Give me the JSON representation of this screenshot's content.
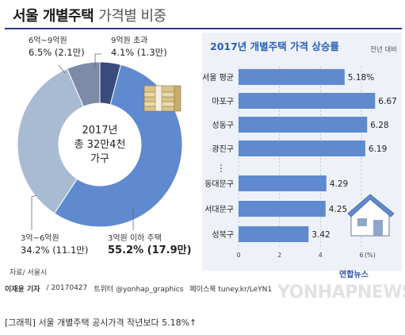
{
  "header": {
    "title_main": "서울 개별주택",
    "title_sub": "가격별 비중"
  },
  "colors": {
    "dark_navy": "#3b4a7d",
    "slate": "#7d8aa8",
    "light_blue_gray": "#a9bbd3",
    "blue": "#5f8ad0",
    "bar_blue": "#5f8ad0",
    "right_bg": "#eef2f8",
    "title_rule": "#2d3a8c"
  },
  "icons": [
    "money-stack-icon",
    "house-icon"
  ],
  "chart_data": [
    {
      "type": "pie",
      "center_label": [
        "2017년",
        "총 32만4천",
        "가구"
      ],
      "slices": [
        {
          "label": "3억원 이하 주택",
          "value_text": "55.2% (17.9만)",
          "value": 55.2,
          "color": "#5f8ad0"
        },
        {
          "label": "3억~6억원",
          "value_text": "34.2% (11.1만)",
          "value": 34.2,
          "color": "#a9bbd3"
        },
        {
          "label": "6억~9억원",
          "value_text": "6.5% (2.1만)",
          "value": 6.5,
          "color": "#7d8aa8"
        },
        {
          "label": "9억원 초과",
          "value_text": "4.1% (1.3만)",
          "value": 4.1,
          "color": "#3b4a7d"
        }
      ]
    },
    {
      "type": "bar",
      "title": "2017년 개별주택 가격 상승률",
      "subtitle": "전년 대비",
      "orientation": "horizontal",
      "categories": [
        "서울 평균",
        "마포구",
        "성동구",
        "광진구",
        "동대문구",
        "서대문구",
        "성북구"
      ],
      "values": [
        5.18,
        6.67,
        6.28,
        6.19,
        4.29,
        4.25,
        3.42
      ],
      "value_labels": [
        "5.18%",
        "6.67",
        "6.28",
        "6.19",
        "4.29",
        "4.25",
        "3.42"
      ],
      "ellipsis_after": 3,
      "ellipsis_text": "⋮",
      "x_ticks": [
        "0",
        "2",
        "4",
        "6"
      ],
      "x_unit": "(%)",
      "xlim": [
        0,
        6.9
      ]
    }
  ],
  "footer": {
    "source": "자료/ 서울시",
    "logo": "연합뉴스",
    "watermark": "YONHAPNEWS",
    "reporter": "이재윤 기자",
    "date": "/ 20170427",
    "twitter": "트위터 @yonhap_graphics",
    "facebook": "페이스북 tuney.kr/LeYN1"
  },
  "caption": "[그래픽] 서울 개별주택 공시가격 작년보다 5.18%↑"
}
